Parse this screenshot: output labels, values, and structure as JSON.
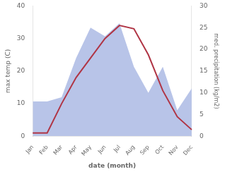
{
  "chart_data": {
    "type": "line",
    "xlabel": "date (month)",
    "ylabel": "max temp (C)",
    "y2label": "med. precipitation (kg/m2)",
    "categories": [
      "Jan",
      "Feb",
      "Mar",
      "Apr",
      "May",
      "Jun",
      "Jul",
      "Aug",
      "Sep",
      "Oct",
      "Nov",
      "Dec"
    ],
    "series": [
      {
        "type": "area",
        "color": "#b8c4e8",
        "axis": "y2",
        "values": [
          8,
          8,
          9,
          18,
          25,
          23,
          26,
          16,
          10,
          16,
          6,
          11
        ]
      },
      {
        "type": "line",
        "color": "#b03545",
        "values": [
          1,
          1,
          10,
          18,
          24,
          30,
          34,
          33,
          25,
          14,
          6,
          2
        ]
      }
    ],
    "ylim": [
      0,
      40
    ],
    "yticks": [
      0,
      10,
      20,
      30,
      40
    ],
    "y2lim": [
      0,
      30
    ],
    "y2ticks": [
      0,
      5,
      10,
      15,
      20,
      25,
      30
    ],
    "grid": false
  }
}
